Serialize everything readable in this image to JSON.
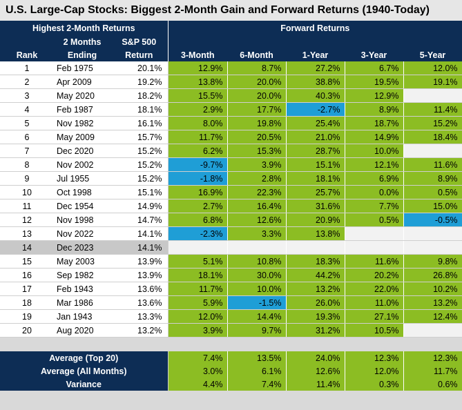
{
  "title": "U.S. Large-Cap Stocks: Biggest 2-Month Gain and Forward Returns (1940-Today)",
  "group_headers": {
    "left": "Highest 2-Month Returns",
    "right": "Forward Returns"
  },
  "columns": {
    "rank": "Rank",
    "ending_line1": "2 Months",
    "ending_line2": "Ending",
    "sp_line1": "S&P 500",
    "sp_line2": "Return",
    "f3m": "3-Month",
    "f6m": "6-Month",
    "f1y": "1-Year",
    "f3y": "3-Year",
    "f5y": "5-Year"
  },
  "rows": [
    {
      "rank": "1",
      "date": "Feb 1975",
      "ret": "20.1%",
      "f": [
        "12.9%",
        "8.7%",
        "27.2%",
        "6.7%",
        "12.0%"
      ]
    },
    {
      "rank": "2",
      "date": "Apr 2009",
      "ret": "19.2%",
      "f": [
        "13.8%",
        "20.0%",
        "38.8%",
        "19.5%",
        "19.1%"
      ]
    },
    {
      "rank": "3",
      "date": "May 2020",
      "ret": "18.2%",
      "f": [
        "15.5%",
        "20.0%",
        "40.3%",
        "12.9%",
        ""
      ]
    },
    {
      "rank": "4",
      "date": "Feb 1987",
      "ret": "18.1%",
      "f": [
        "2.9%",
        "17.7%",
        "-2.7%",
        "8.9%",
        "11.4%"
      ]
    },
    {
      "rank": "5",
      "date": "Nov 1982",
      "ret": "16.1%",
      "f": [
        "8.0%",
        "19.8%",
        "25.4%",
        "18.7%",
        "15.2%"
      ]
    },
    {
      "rank": "6",
      "date": "May 2009",
      "ret": "15.7%",
      "f": [
        "11.7%",
        "20.5%",
        "21.0%",
        "14.9%",
        "18.4%"
      ]
    },
    {
      "rank": "7",
      "date": "Dec 2020",
      "ret": "15.2%",
      "f": [
        "6.2%",
        "15.3%",
        "28.7%",
        "10.0%",
        ""
      ]
    },
    {
      "rank": "8",
      "date": "Nov 2002",
      "ret": "15.2%",
      "f": [
        "-9.7%",
        "3.9%",
        "15.1%",
        "12.1%",
        "11.6%"
      ]
    },
    {
      "rank": "9",
      "date": "Jul 1955",
      "ret": "15.2%",
      "f": [
        "-1.8%",
        "2.8%",
        "18.1%",
        "6.9%",
        "8.9%"
      ]
    },
    {
      "rank": "10",
      "date": "Oct 1998",
      "ret": "15.1%",
      "f": [
        "16.9%",
        "22.3%",
        "25.7%",
        "0.0%",
        "0.5%"
      ]
    },
    {
      "rank": "11",
      "date": "Dec 1954",
      "ret": "14.9%",
      "f": [
        "2.7%",
        "16.4%",
        "31.6%",
        "7.7%",
        "15.0%"
      ]
    },
    {
      "rank": "12",
      "date": "Nov 1998",
      "ret": "14.7%",
      "f": [
        "6.8%",
        "12.6%",
        "20.9%",
        "0.5%",
        "-0.5%"
      ]
    },
    {
      "rank": "13",
      "date": "Nov 2022",
      "ret": "14.1%",
      "f": [
        "-2.3%",
        "3.3%",
        "13.8%",
        "",
        ""
      ]
    },
    {
      "rank": "14",
      "date": "Dec 2023",
      "ret": "14.1%",
      "f": [
        "",
        "",
        "",
        "",
        ""
      ],
      "highlight": true
    },
    {
      "rank": "15",
      "date": "May 2003",
      "ret": "13.9%",
      "f": [
        "5.1%",
        "10.8%",
        "18.3%",
        "11.6%",
        "9.8%"
      ]
    },
    {
      "rank": "16",
      "date": "Sep 1982",
      "ret": "13.9%",
      "f": [
        "18.1%",
        "30.0%",
        "44.2%",
        "20.2%",
        "26.8%"
      ]
    },
    {
      "rank": "17",
      "date": "Feb 1943",
      "ret": "13.6%",
      "f": [
        "11.7%",
        "10.0%",
        "13.2%",
        "22.0%",
        "10.2%"
      ]
    },
    {
      "rank": "18",
      "date": "Mar 1986",
      "ret": "13.6%",
      "f": [
        "5.9%",
        "-1.5%",
        "26.0%",
        "11.0%",
        "13.2%"
      ]
    },
    {
      "rank": "19",
      "date": "Jan 1943",
      "ret": "13.3%",
      "f": [
        "12.0%",
        "14.4%",
        "19.3%",
        "27.1%",
        "12.4%"
      ]
    },
    {
      "rank": "20",
      "date": "Aug 2020",
      "ret": "13.2%",
      "f": [
        "3.9%",
        "9.7%",
        "31.2%",
        "10.5%",
        ""
      ]
    }
  ],
  "summary": [
    {
      "label": "Average (Top 20)",
      "ret": "",
      "f": [
        "7.4%",
        "13.5%",
        "24.0%",
        "12.3%",
        "12.3%"
      ]
    },
    {
      "label": "Average (All Months)",
      "ret": "",
      "f": [
        "3.0%",
        "6.1%",
        "12.6%",
        "12.0%",
        "11.7%"
      ]
    },
    {
      "label": "Variance",
      "ret": "",
      "f": [
        "4.4%",
        "7.4%",
        "11.4%",
        "0.3%",
        "0.6%"
      ]
    }
  ],
  "colors": {
    "header_navy": "#0d2d55",
    "positive_green": "#8cbd23",
    "negative_blue": "#1f9ed6",
    "empty_cell": "#f2f2f2"
  }
}
